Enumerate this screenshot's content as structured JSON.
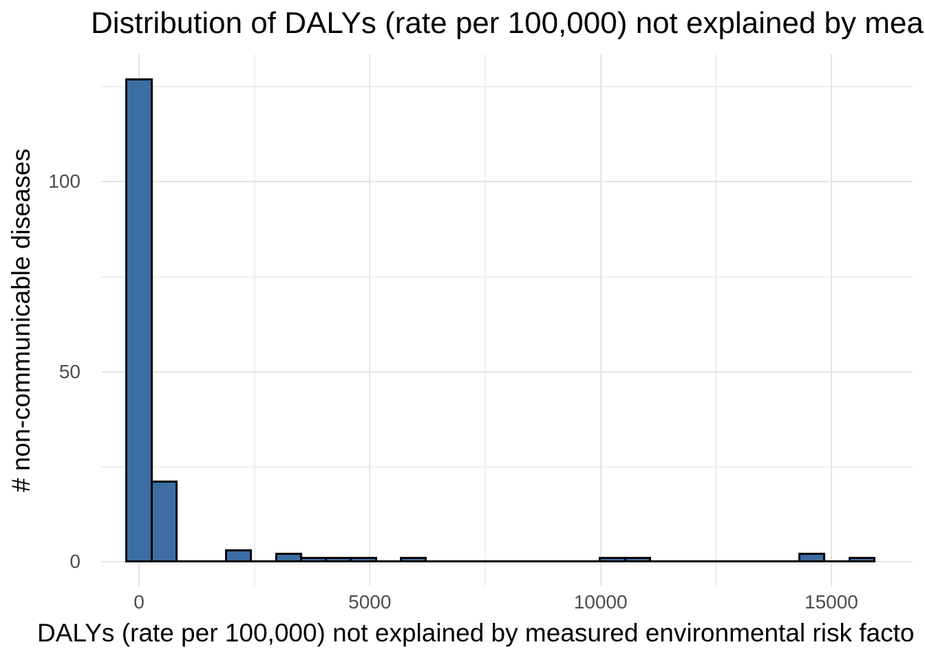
{
  "chart_data": {
    "type": "bar",
    "subtype": "histogram",
    "title": "Distribution of DALYs (rate per 100,000) not explained by mea",
    "xlabel": "DALYs (rate per 100,000) not explained by measured environmental risk facto",
    "ylabel": "# non-communicable diseases",
    "bin_width": 540,
    "bins": [
      {
        "x0": -270,
        "x1": 270,
        "count": 127
      },
      {
        "x0": 270,
        "x1": 810,
        "count": 21
      },
      {
        "x0": 1890,
        "x1": 2430,
        "count": 3
      },
      {
        "x0": 2970,
        "x1": 3510,
        "count": 2
      },
      {
        "x0": 3510,
        "x1": 4050,
        "count": 1
      },
      {
        "x0": 4050,
        "x1": 4590,
        "count": 1
      },
      {
        "x0": 4590,
        "x1": 5130,
        "count": 1
      },
      {
        "x0": 5670,
        "x1": 6210,
        "count": 1
      },
      {
        "x0": 9990,
        "x1": 10530,
        "count": 1
      },
      {
        "x0": 10530,
        "x1": 11070,
        "count": 1
      },
      {
        "x0": 14310,
        "x1": 14850,
        "count": 2
      },
      {
        "x0": 15390,
        "x1": 15930,
        "count": 1
      }
    ],
    "baseline": {
      "x0": -270,
      "x1": 15930,
      "y": 0
    },
    "x_ticks": [
      0,
      5000,
      10000,
      15000
    ],
    "x_tick_labels": [
      "0",
      "5000",
      "10000",
      "15000"
    ],
    "x_minor_ticks": [
      2500,
      7500,
      12500
    ],
    "y_ticks": [
      0,
      50,
      100
    ],
    "y_tick_labels": [
      "0",
      "50",
      "100"
    ],
    "y_minor_ticks": [
      25,
      75,
      125
    ],
    "xlim": [
      -820,
      16760
    ],
    "ylim": [
      -6.6,
      133.6
    ],
    "grid": true,
    "legend": "none",
    "colors": {
      "bar_fill": "#3C6DA3",
      "bar_stroke": "#000000",
      "grid_major": "#E4E4E4",
      "grid_minor": "#EFEFEF",
      "tick_label": "#4D4D4D",
      "text": "#000000",
      "background": "#FFFFFF"
    }
  }
}
